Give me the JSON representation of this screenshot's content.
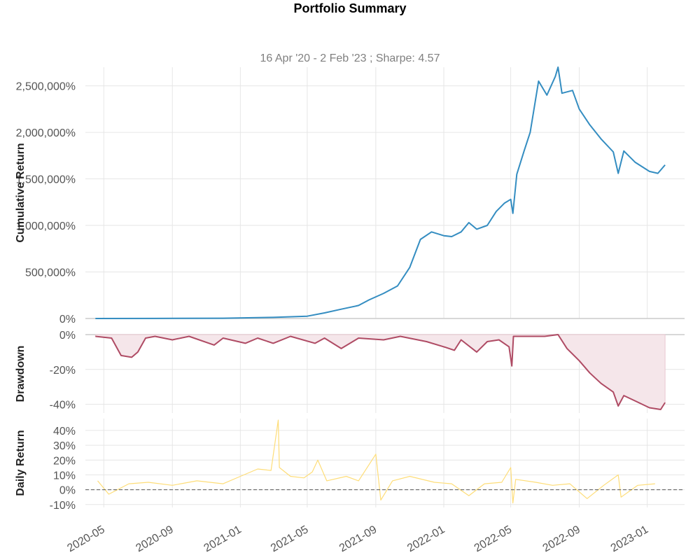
{
  "chart_data": {
    "type": "line",
    "title": "Portfolio Summary",
    "subtitle": "16 Apr '20 -  2 Feb '23 ;  Sharpe: 4.57",
    "date_range": [
      "2020-04-16",
      "2023-02-02"
    ],
    "sharpe": 4.57,
    "x_ticks": [
      "2020-05",
      "2020-09",
      "2021-01",
      "2021-05",
      "2021-09",
      "2022-01",
      "2022-05",
      "2022-09",
      "2023-01"
    ],
    "colors": {
      "cumulative": "#348dc1",
      "drawdown": "#af4b64",
      "drawdown_fill": "#f5e6ea",
      "daily": "#fedd78",
      "zero_line": "#555555"
    },
    "panels": [
      {
        "name": "cumulative_return",
        "ylabel": "Cumulative Return",
        "ylim": [
          0,
          2700000
        ],
        "yticks": [
          0,
          500000,
          1000000,
          1500000,
          2000000,
          2500000
        ],
        "ytick_labels": [
          "0%",
          "500,000%",
          "1,000,000%",
          "1,500,000%",
          "2,000,000%",
          "2,500,000%"
        ],
        "series": [
          [
            "2020-04-16",
            0
          ],
          [
            "2020-08-01",
            500
          ],
          [
            "2020-12-01",
            3000
          ],
          [
            "2021-03-01",
            12000
          ],
          [
            "2021-05-01",
            25000
          ],
          [
            "2021-06-01",
            60000
          ],
          [
            "2021-07-01",
            100000
          ],
          [
            "2021-08-01",
            140000
          ],
          [
            "2021-08-20",
            200000
          ],
          [
            "2021-09-15",
            270000
          ],
          [
            "2021-10-10",
            350000
          ],
          [
            "2021-11-01",
            550000
          ],
          [
            "2021-11-20",
            850000
          ],
          [
            "2021-12-10",
            930000
          ],
          [
            "2022-01-01",
            890000
          ],
          [
            "2022-01-15",
            880000
          ],
          [
            "2022-02-01",
            930000
          ],
          [
            "2022-02-15",
            1030000
          ],
          [
            "2022-03-01",
            960000
          ],
          [
            "2022-03-20",
            1000000
          ],
          [
            "2022-04-05",
            1150000
          ],
          [
            "2022-04-20",
            1240000
          ],
          [
            "2022-05-01",
            1280000
          ],
          [
            "2022-05-05",
            1130000
          ],
          [
            "2022-05-12",
            1550000
          ],
          [
            "2022-05-25",
            1800000
          ],
          [
            "2022-06-05",
            2000000
          ],
          [
            "2022-06-20",
            2550000
          ],
          [
            "2022-07-05",
            2400000
          ],
          [
            "2022-07-20",
            2600000
          ],
          [
            "2022-07-25",
            2700000
          ],
          [
            "2022-08-01",
            2420000
          ],
          [
            "2022-08-20",
            2450000
          ],
          [
            "2022-09-01",
            2250000
          ],
          [
            "2022-09-20",
            2080000
          ],
          [
            "2022-10-10",
            1930000
          ],
          [
            "2022-11-01",
            1790000
          ],
          [
            "2022-11-10",
            1560000
          ],
          [
            "2022-11-20",
            1800000
          ],
          [
            "2022-12-10",
            1680000
          ],
          [
            "2023-01-05",
            1580000
          ],
          [
            "2023-01-20",
            1560000
          ],
          [
            "2023-02-02",
            1650000
          ]
        ]
      },
      {
        "name": "drawdown",
        "ylabel": "Drawdown",
        "ylim": [
          -45,
          0
        ],
        "yticks": [
          0,
          -20,
          -40
        ],
        "ytick_labels": [
          "0%",
          "-20%",
          "-40%"
        ],
        "series": [
          [
            "2020-04-16",
            -1
          ],
          [
            "2020-05-15",
            -2
          ],
          [
            "2020-06-01",
            -12
          ],
          [
            "2020-06-20",
            -13
          ],
          [
            "2020-07-01",
            -10
          ],
          [
            "2020-07-15",
            -2
          ],
          [
            "2020-08-01",
            -1
          ],
          [
            "2020-09-01",
            -3
          ],
          [
            "2020-10-01",
            -1
          ],
          [
            "2020-11-15",
            -6
          ],
          [
            "2020-12-01",
            -2
          ],
          [
            "2021-01-10",
            -5
          ],
          [
            "2021-02-01",
            -2
          ],
          [
            "2021-03-01",
            -5
          ],
          [
            "2021-04-01",
            -1
          ],
          [
            "2021-05-15",
            -5
          ],
          [
            "2021-06-01",
            -2
          ],
          [
            "2021-07-01",
            -8
          ],
          [
            "2021-08-01",
            -2
          ],
          [
            "2021-09-15",
            -3
          ],
          [
            "2021-10-15",
            -1
          ],
          [
            "2021-12-01",
            -4
          ],
          [
            "2022-01-01",
            -7
          ],
          [
            "2022-01-20",
            -9
          ],
          [
            "2022-02-01",
            -3
          ],
          [
            "2022-03-01",
            -10
          ],
          [
            "2022-03-20",
            -4
          ],
          [
            "2022-04-10",
            -3
          ],
          [
            "2022-04-28",
            -7
          ],
          [
            "2022-05-03",
            -18
          ],
          [
            "2022-05-06",
            -1
          ],
          [
            "2022-06-01",
            -1
          ],
          [
            "2022-07-01",
            -1
          ],
          [
            "2022-07-25",
            0
          ],
          [
            "2022-08-10",
            -8
          ],
          [
            "2022-09-01",
            -15
          ],
          [
            "2022-09-20",
            -22
          ],
          [
            "2022-10-10",
            -28
          ],
          [
            "2022-11-01",
            -33
          ],
          [
            "2022-11-10",
            -41
          ],
          [
            "2022-11-20",
            -35
          ],
          [
            "2022-12-10",
            -38
          ],
          [
            "2023-01-05",
            -42
          ],
          [
            "2023-01-25",
            -43
          ],
          [
            "2023-02-02",
            -39
          ]
        ]
      },
      {
        "name": "daily_return",
        "ylabel": "Daily Return",
        "ylim": [
          -12,
          48
        ],
        "yticks": [
          -10,
          0,
          10,
          20,
          30,
          40
        ],
        "ytick_labels": [
          "-10%",
          "0%",
          "10%",
          "20%",
          "30%",
          "40%"
        ],
        "series": [
          [
            "2020-04-20",
            6
          ],
          [
            "2020-05-10",
            -3
          ],
          [
            "2020-06-15",
            4
          ],
          [
            "2020-07-20",
            5
          ],
          [
            "2020-09-01",
            3
          ],
          [
            "2020-10-15",
            6
          ],
          [
            "2020-12-01",
            4
          ],
          [
            "2021-01-01",
            9
          ],
          [
            "2021-02-01",
            14
          ],
          [
            "2021-02-25",
            13
          ],
          [
            "2021-03-10",
            47
          ],
          [
            "2021-03-12",
            15
          ],
          [
            "2021-04-01",
            9
          ],
          [
            "2021-04-25",
            8
          ],
          [
            "2021-05-10",
            12
          ],
          [
            "2021-05-20",
            20
          ],
          [
            "2021-06-05",
            6
          ],
          [
            "2021-07-10",
            9
          ],
          [
            "2021-08-01",
            6
          ],
          [
            "2021-09-01",
            24
          ],
          [
            "2021-09-10",
            -7
          ],
          [
            "2021-10-01",
            6
          ],
          [
            "2021-11-01",
            9
          ],
          [
            "2021-12-15",
            5
          ],
          [
            "2022-01-15",
            4
          ],
          [
            "2022-02-15",
            -4
          ],
          [
            "2022-03-15",
            4
          ],
          [
            "2022-04-15",
            5
          ],
          [
            "2022-05-01",
            15
          ],
          [
            "2022-05-05",
            -9
          ],
          [
            "2022-05-10",
            7
          ],
          [
            "2022-06-15",
            5
          ],
          [
            "2022-07-15",
            3
          ],
          [
            "2022-08-15",
            4
          ],
          [
            "2022-09-15",
            -6
          ],
          [
            "2022-10-15",
            3
          ],
          [
            "2022-11-10",
            10
          ],
          [
            "2022-11-15",
            -5
          ],
          [
            "2022-12-15",
            3
          ],
          [
            "2023-01-15",
            4
          ]
        ]
      }
    ]
  }
}
